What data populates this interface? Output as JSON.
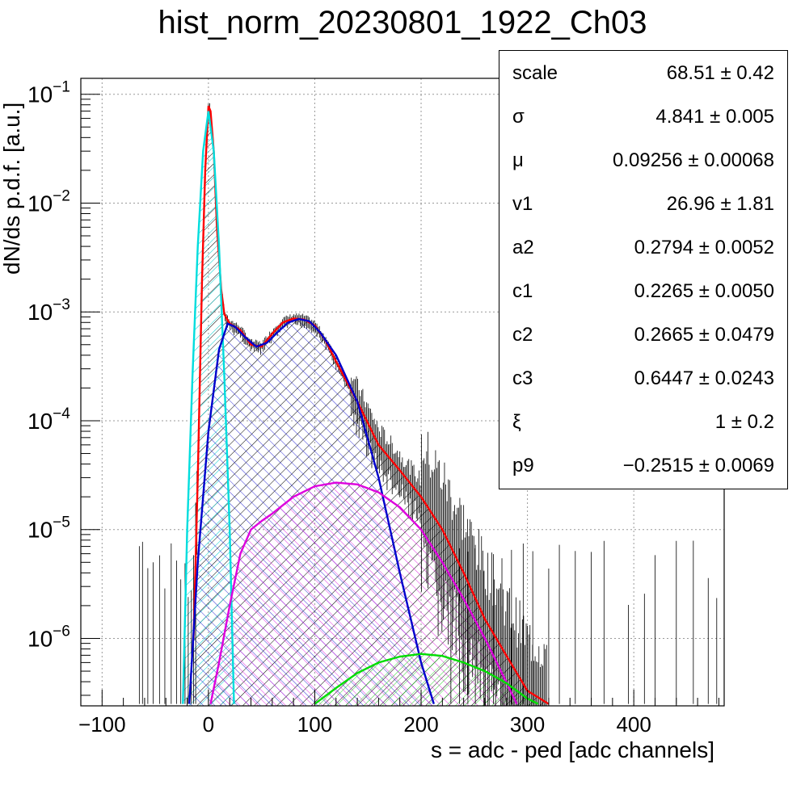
{
  "title": "hist_norm_20230801_1922_Ch03",
  "chart_data": {
    "type": "area",
    "title": "hist_norm_20230801_1922_Ch03",
    "xlabel": "s = adc - ped [adc channels]",
    "ylabel": "dN/ds p.d.f. [a.u.]",
    "xlim": [
      -120,
      485
    ],
    "ylim": [
      2.4e-07,
      0.14
    ],
    "yscale": "log",
    "grid": true,
    "legend": "top-right",
    "x_ticks": [
      -100,
      0,
      100,
      200,
      300,
      400
    ],
    "y_ticks": [
      {
        "value": 0.1,
        "base": "10",
        "exp": "−1"
      },
      {
        "value": 0.01,
        "base": "10",
        "exp": "−2"
      },
      {
        "value": 0.001,
        "base": "10",
        "exp": "−3"
      },
      {
        "value": 0.0001,
        "base": "10",
        "exp": "−4"
      },
      {
        "value": 1e-05,
        "base": "10",
        "exp": "−5"
      },
      {
        "value": 1e-06,
        "base": "10",
        "exp": "−6"
      }
    ],
    "series": [
      {
        "color": "#ff0000",
        "style": "line",
        "x": [
          -14,
          -10,
          -6,
          -3,
          0,
          2,
          5,
          8,
          12,
          15,
          20,
          30,
          40,
          50,
          60,
          70,
          80,
          90,
          100,
          110,
          120,
          140,
          160,
          180,
          200,
          220,
          240,
          260,
          280,
          300,
          320
        ],
        "y": [
          1e-06,
          3e-05,
          0.002,
          0.02,
          0.078,
          0.07,
          0.03,
          0.006,
          0.0016,
          0.00095,
          0.00078,
          0.00068,
          0.0005,
          0.00048,
          0.00063,
          0.0008,
          0.00087,
          0.00085,
          0.00075,
          0.00055,
          0.00035,
          0.00015,
          6e-05,
          3.5e-05,
          2e-05,
          1e-05,
          4e-06,
          1.5e-06,
          7e-07,
          3.3e-07,
          2.5e-07
        ]
      },
      {
        "color": "#00dddd",
        "style": "line",
        "x": [
          -24,
          -20,
          -15,
          -10,
          -5,
          0,
          5,
          10,
          15,
          20,
          24
        ],
        "y": [
          2.5e-07,
          1e-05,
          0.00025,
          0.004,
          0.03,
          0.07,
          0.03,
          0.004,
          0.00025,
          1e-05,
          2.5e-07
        ]
      },
      {
        "color": "#0000cc",
        "style": "line",
        "x": [
          -18,
          -10,
          0,
          10,
          18,
          25,
          35,
          45,
          55,
          65,
          75,
          85,
          95,
          105,
          120,
          140,
          160,
          180,
          200,
          212
        ],
        "y": [
          2.5e-07,
          5e-06,
          8e-05,
          0.00045,
          0.00078,
          0.00073,
          0.00058,
          0.00048,
          0.00052,
          0.00065,
          0.0008,
          0.00086,
          0.00082,
          0.00065,
          0.0004,
          0.00015,
          3e-05,
          4e-06,
          6e-07,
          2.5e-07
        ]
      },
      {
        "color": "#dd00dd",
        "style": "line",
        "x": [
          2,
          10,
          20,
          30,
          40,
          50,
          60,
          80,
          100,
          120,
          140,
          160,
          180,
          200,
          220,
          240,
          260,
          280,
          290
        ],
        "y": [
          2.5e-07,
          6e-07,
          2e-06,
          6e-06,
          1e-05,
          1.2e-05,
          1.4e-05,
          2e-05,
          2.5e-05,
          2.7e-05,
          2.6e-05,
          2.2e-05,
          1.6e-05,
          1e-05,
          5e-06,
          2.3e-06,
          1e-06,
          4e-07,
          2.5e-07
        ]
      },
      {
        "color": "#00dd00",
        "style": "line",
        "x": [
          100,
          120,
          140,
          160,
          180,
          200,
          220,
          240,
          260,
          280,
          300,
          310
        ],
        "y": [
          2.5e-07,
          3.5e-07,
          4.8e-07,
          6e-07,
          6.8e-07,
          7.2e-07,
          6.9e-07,
          6e-07,
          5e-07,
          3.9e-07,
          2.8e-07,
          2.5e-07
        ]
      }
    ],
    "stats": [
      {
        "name": "scale",
        "value": "68.51 ± 0.42"
      },
      {
        "name": "σ",
        "value": "4.841 ± 0.005"
      },
      {
        "name": "μ",
        "value": "0.09256 ± 0.00068"
      },
      {
        "name": "v1",
        "value": "26.96 ± 1.81"
      },
      {
        "name": "a2",
        "value": "0.2794 ± 0.0052"
      },
      {
        "name": "c1",
        "value": "0.2265 ± 0.0050"
      },
      {
        "name": "c2",
        "value": "0.2665 ± 0.0479"
      },
      {
        "name": "c3",
        "value": "0.6447 ± 0.0243"
      },
      {
        "name": "ξ",
        "value": "1 ± 0.2"
      },
      {
        "name": "p9",
        "value": "−0.2515 ± 0.0069"
      }
    ]
  }
}
